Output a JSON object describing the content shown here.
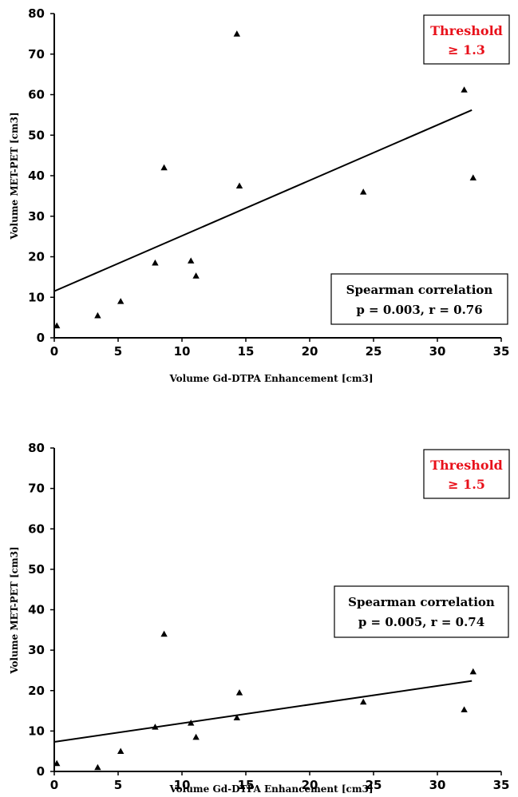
{
  "chart_data": [
    {
      "type": "scatter",
      "xlabel": "Volume Gd-DTPA Enhancement [cm3]",
      "ylabel": "Volume MET-PET [cm3]",
      "xlim": [
        0,
        35
      ],
      "ylim": [
        0,
        80
      ],
      "x_ticks": [
        "0",
        "5",
        "10",
        "15",
        "20",
        "25",
        "30",
        "35"
      ],
      "y_ticks": [
        "0",
        "10",
        "20",
        "30",
        "40",
        "50",
        "60",
        "70",
        "80"
      ],
      "threshold_box": {
        "line1": "Threshold",
        "line2": "≥ 1.3",
        "color": "#e8101a"
      },
      "stats_box": {
        "line1": "Spearman correlation",
        "line2": "p = 0.003, r = 0.76"
      },
      "points": [
        {
          "x": 0.2,
          "y": 3.0
        },
        {
          "x": 3.4,
          "y": 5.5
        },
        {
          "x": 5.2,
          "y": 9.0
        },
        {
          "x": 7.9,
          "y": 18.5
        },
        {
          "x": 8.6,
          "y": 42.0
        },
        {
          "x": 10.7,
          "y": 19.0
        },
        {
          "x": 11.1,
          "y": 15.3
        },
        {
          "x": 14.3,
          "y": 75.0
        },
        {
          "x": 14.5,
          "y": 37.5
        },
        {
          "x": 24.2,
          "y": 36.0
        },
        {
          "x": 32.1,
          "y": 61.2
        },
        {
          "x": 32.8,
          "y": 39.5
        }
      ],
      "trendline": {
        "x": [
          0,
          32.7
        ],
        "y": [
          11.5,
          56.2
        ]
      }
    },
    {
      "type": "scatter",
      "xlabel": "Volume Gd-DTPA Enhancement [cm3]",
      "ylabel": "Volume MET-PET [cm3]",
      "xlim": [
        0,
        35
      ],
      "ylim": [
        0,
        80
      ],
      "x_ticks": [
        "0",
        "5",
        "10",
        "15",
        "20",
        "25",
        "30",
        "35"
      ],
      "y_ticks": [
        "0",
        "10",
        "20",
        "30",
        "40",
        "50",
        "60",
        "70",
        "80"
      ],
      "threshold_box": {
        "line1": "Threshold",
        "line2": "≥ 1.5",
        "color": "#e8101a"
      },
      "stats_box": {
        "line1": "Spearman correlation",
        "line2": "p = 0.005, r = 0.74"
      },
      "points": [
        {
          "x": 0.2,
          "y": 2.0
        },
        {
          "x": 3.4,
          "y": 1.0
        },
        {
          "x": 5.2,
          "y": 5.0
        },
        {
          "x": 7.9,
          "y": 11.0
        },
        {
          "x": 8.6,
          "y": 34.0
        },
        {
          "x": 10.7,
          "y": 12.0
        },
        {
          "x": 11.1,
          "y": 8.5
        },
        {
          "x": 14.3,
          "y": 13.3
        },
        {
          "x": 14.5,
          "y": 19.5
        },
        {
          "x": 24.2,
          "y": 17.2
        },
        {
          "x": 32.1,
          "y": 15.3
        },
        {
          "x": 32.8,
          "y": 24.7
        }
      ],
      "trendline": {
        "x": [
          0,
          32.7
        ],
        "y": [
          7.3,
          22.4
        ]
      }
    }
  ]
}
